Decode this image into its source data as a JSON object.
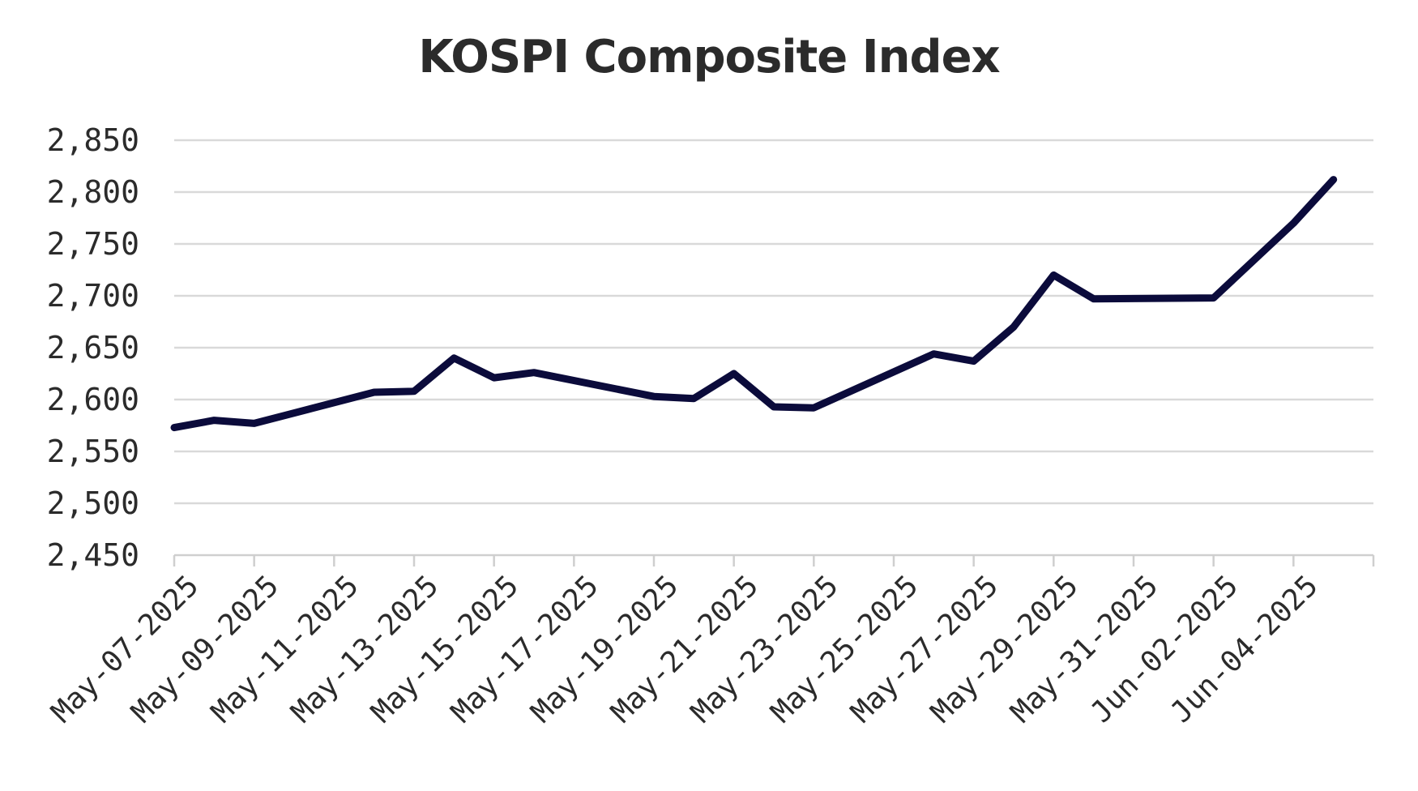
{
  "chart_data": {
    "type": "line",
    "title": "KOSPI Composite Index",
    "xlabel": "",
    "ylabel": "",
    "ylim": [
      2450,
      2850
    ],
    "yticks": [
      "2,450",
      "2,500",
      "2,550",
      "2,600",
      "2,650",
      "2,700",
      "2,750",
      "2,800",
      "2,850"
    ],
    "xticks": [
      "May-07-2025",
      "May-09-2025",
      "May-11-2025",
      "May-13-2025",
      "May-15-2025",
      "May-17-2025",
      "May-19-2025",
      "May-21-2025",
      "May-23-2025",
      "May-25-2025",
      "May-27-2025",
      "May-29-2025",
      "May-31-2025",
      "Jun-02-2025",
      "Jun-04-2025"
    ],
    "xlim": [
      "2025-05-07",
      "2025-06-06"
    ],
    "grid": true,
    "legend": "none",
    "series": [
      {
        "color": "#0b0b3b",
        "points": [
          {
            "x": "2025-05-07",
            "y": 2573
          },
          {
            "x": "2025-05-08",
            "y": 2580
          },
          {
            "x": "2025-05-09",
            "y": 2577
          },
          {
            "x": "2025-05-12",
            "y": 2607
          },
          {
            "x": "2025-05-13",
            "y": 2608
          },
          {
            "x": "2025-05-14",
            "y": 2640
          },
          {
            "x": "2025-05-15",
            "y": 2621
          },
          {
            "x": "2025-05-16",
            "y": 2626
          },
          {
            "x": "2025-05-19",
            "y": 2603
          },
          {
            "x": "2025-05-20",
            "y": 2601
          },
          {
            "x": "2025-05-21",
            "y": 2625
          },
          {
            "x": "2025-05-22",
            "y": 2593
          },
          {
            "x": "2025-05-23",
            "y": 2592
          },
          {
            "x": "2025-05-26",
            "y": 2644
          },
          {
            "x": "2025-05-27",
            "y": 2637
          },
          {
            "x": "2025-05-28",
            "y": 2670
          },
          {
            "x": "2025-05-29",
            "y": 2720
          },
          {
            "x": "2025-05-30",
            "y": 2697
          },
          {
            "x": "2025-06-02",
            "y": 2698
          },
          {
            "x": "2025-06-04",
            "y": 2770
          },
          {
            "x": "2025-06-05",
            "y": 2812
          }
        ]
      }
    ]
  }
}
